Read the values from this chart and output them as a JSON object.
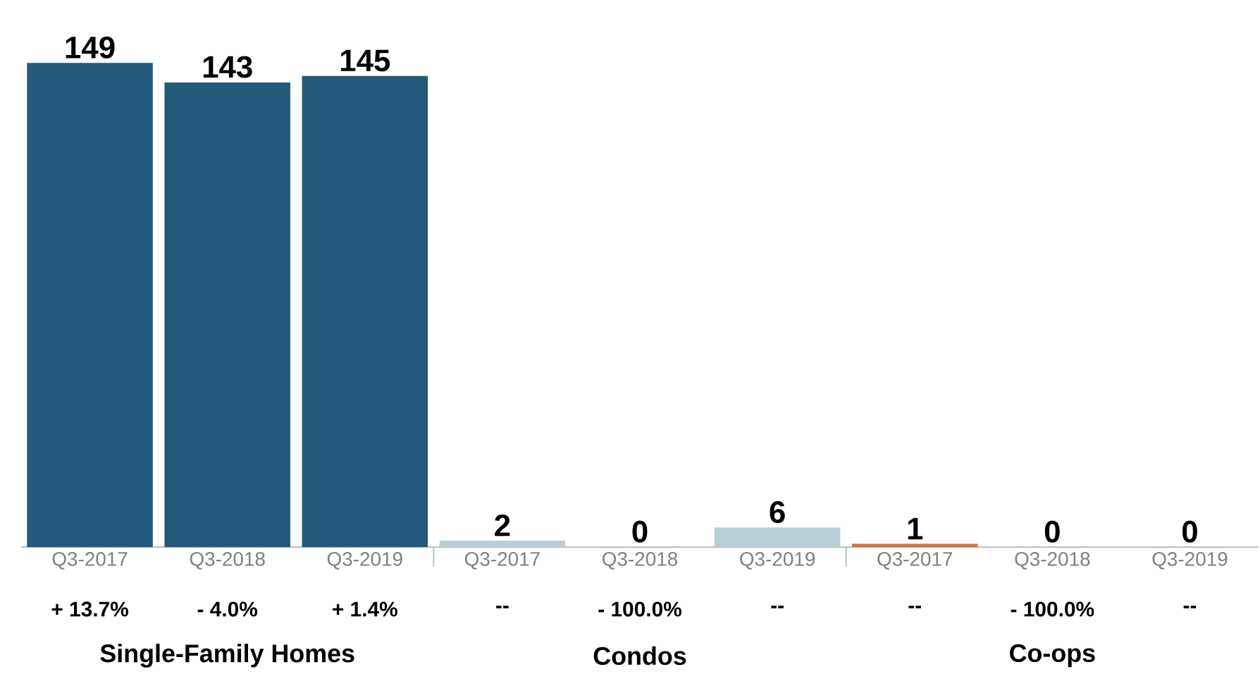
{
  "chart_data": {
    "type": "bar",
    "categories": [
      "Q3-2017",
      "Q3-2018",
      "Q3-2019",
      "Q3-2017",
      "Q3-2018",
      "Q3-2019",
      "Q3-2017",
      "Q3-2018",
      "Q3-2019"
    ],
    "values": [
      149,
      143,
      145,
      2,
      0,
      6,
      1,
      0,
      0
    ],
    "colors": [
      "#235a7a",
      "#235a7a",
      "#235a7a",
      "#b9cfd8",
      "#b9cfd8",
      "#b9cfd8",
      "#d9713a",
      "#d9713a",
      "#d9713a"
    ],
    "data_labels": true,
    "annotations": [
      "+ 13.7%",
      "- 4.0%",
      "+ 1.4%",
      "--",
      "- 100.0%",
      "--",
      "--",
      "- 100.0%",
      "--",
      "Single-Family Homes",
      "Condos",
      "Co-ops"
    ]
  }
}
